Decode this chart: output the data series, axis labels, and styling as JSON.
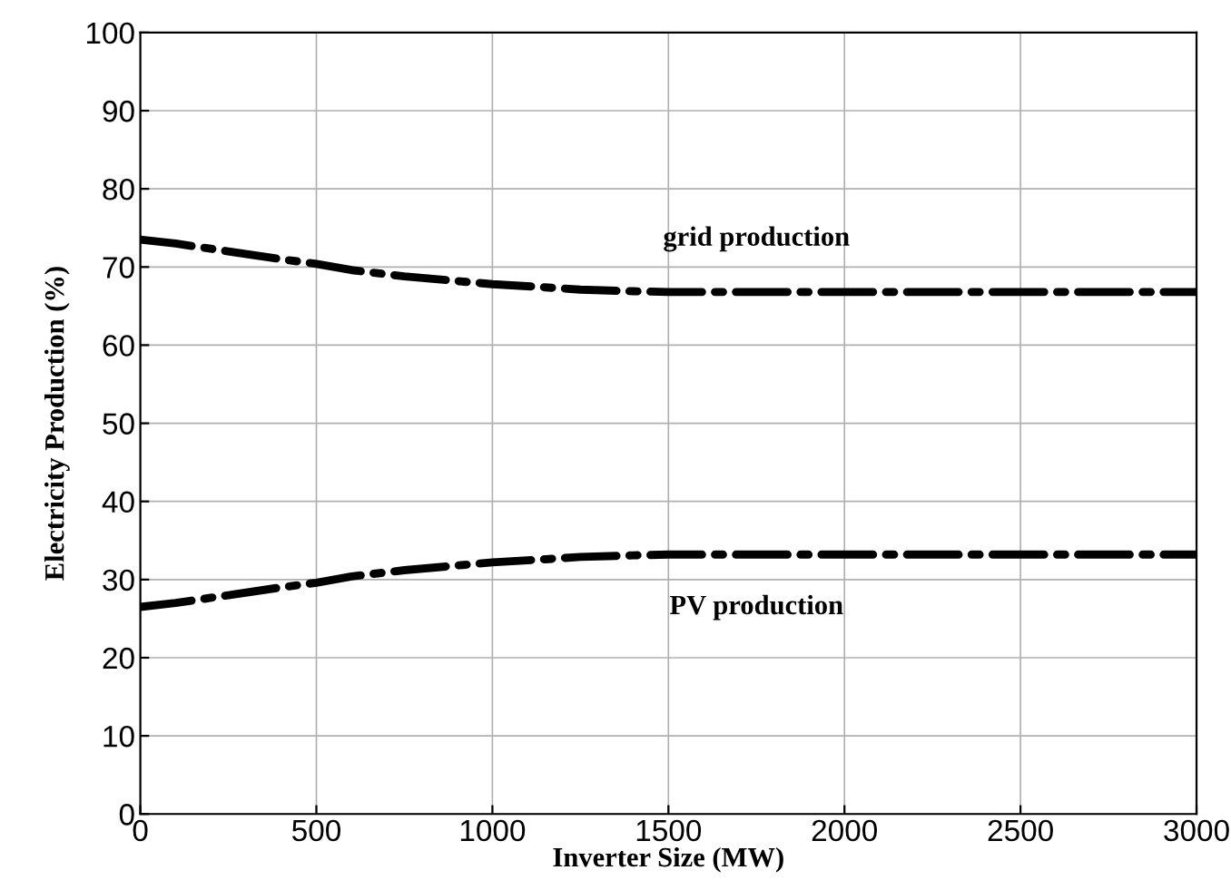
{
  "chart_data": {
    "type": "line",
    "xlabel": "Inverter Size (MW)",
    "ylabel": "Electricity Production (%)",
    "x": [
      0,
      100,
      250,
      400,
      500,
      600,
      750,
      900,
      1000,
      1150,
      1250,
      1400,
      1500,
      1750,
      2000,
      2500,
      3000
    ],
    "series": [
      {
        "name": "grid production",
        "color": "#000000",
        "values": [
          73.5,
          73.0,
          72.0,
          71.0,
          70.4,
          69.6,
          68.8,
          68.2,
          67.8,
          67.4,
          67.1,
          66.9,
          66.8,
          66.8,
          66.8,
          66.8,
          66.8
        ]
      },
      {
        "name": "PV production",
        "color": "#000000",
        "values": [
          26.5,
          27.0,
          28.0,
          29.0,
          29.6,
          30.4,
          31.2,
          31.8,
          32.2,
          32.6,
          32.9,
          33.1,
          33.2,
          33.2,
          33.2,
          33.2,
          33.2
        ]
      }
    ],
    "xlim": [
      0,
      3000
    ],
    "ylim": [
      0,
      100
    ],
    "xticks": [
      0,
      500,
      1000,
      1500,
      2000,
      2500,
      3000
    ],
    "yticks": [
      0,
      10,
      20,
      30,
      40,
      50,
      60,
      70,
      80,
      90,
      100
    ],
    "grid": true,
    "line_style": "dashdot",
    "marker": "none"
  }
}
